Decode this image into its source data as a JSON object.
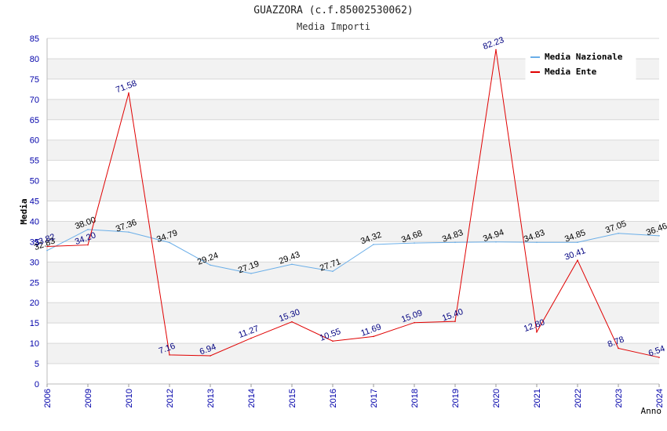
{
  "title": "GUAZZORA (c.f.85002530062)",
  "subtitle": "Media Importi",
  "chart_data": {
    "type": "line",
    "title": "GUAZZORA (c.f.85002530062)",
    "subtitle": "Media Importi",
    "xlabel": "Anno",
    "ylabel": "Media",
    "ylim": [
      0,
      85
    ],
    "yticks": [
      0,
      5,
      10,
      15,
      20,
      25,
      30,
      35,
      40,
      45,
      50,
      55,
      60,
      65,
      70,
      75,
      80,
      85
    ],
    "categories": [
      "2006",
      "2009",
      "2010",
      "2012",
      "2013",
      "2014",
      "2015",
      "2016",
      "2017",
      "2018",
      "2019",
      "2020",
      "2021",
      "2022",
      "2023",
      "2024"
    ],
    "grid": true,
    "legend_position": "top-right",
    "series": [
      {
        "name": "Media Nazionale",
        "color": "#6aaee8",
        "label_color": "#000000",
        "values": [
          32.83,
          38.0,
          37.36,
          34.79,
          29.24,
          27.19,
          29.43,
          27.71,
          34.32,
          34.68,
          34.83,
          34.94,
          34.83,
          34.85,
          37.05,
          36.46
        ],
        "labels": [
          "32.83",
          "38.00",
          "37.36",
          "34.79",
          "29.24",
          "27.19",
          "29.43",
          "27.71",
          "34.32",
          "34.68",
          "34.83",
          "34.94",
          "34.83",
          "34.85",
          "37.05",
          "36.46"
        ]
      },
      {
        "name": "Media Ente",
        "color": "#e00000",
        "label_color": "#000080",
        "values": [
          33.82,
          34.2,
          71.58,
          7.16,
          6.94,
          11.27,
          15.3,
          10.55,
          11.69,
          15.09,
          15.4,
          82.23,
          12.8,
          30.41,
          8.78,
          6.54
        ],
        "labels": [
          "33.82",
          "34.20",
          "71.58",
          "7.16",
          "6.94",
          "11.27",
          "15.30",
          "10.55",
          "11.69",
          "15.09",
          "15.40",
          "82.23",
          "12.80",
          "30.41",
          "8.78",
          "6.54"
        ]
      }
    ]
  }
}
